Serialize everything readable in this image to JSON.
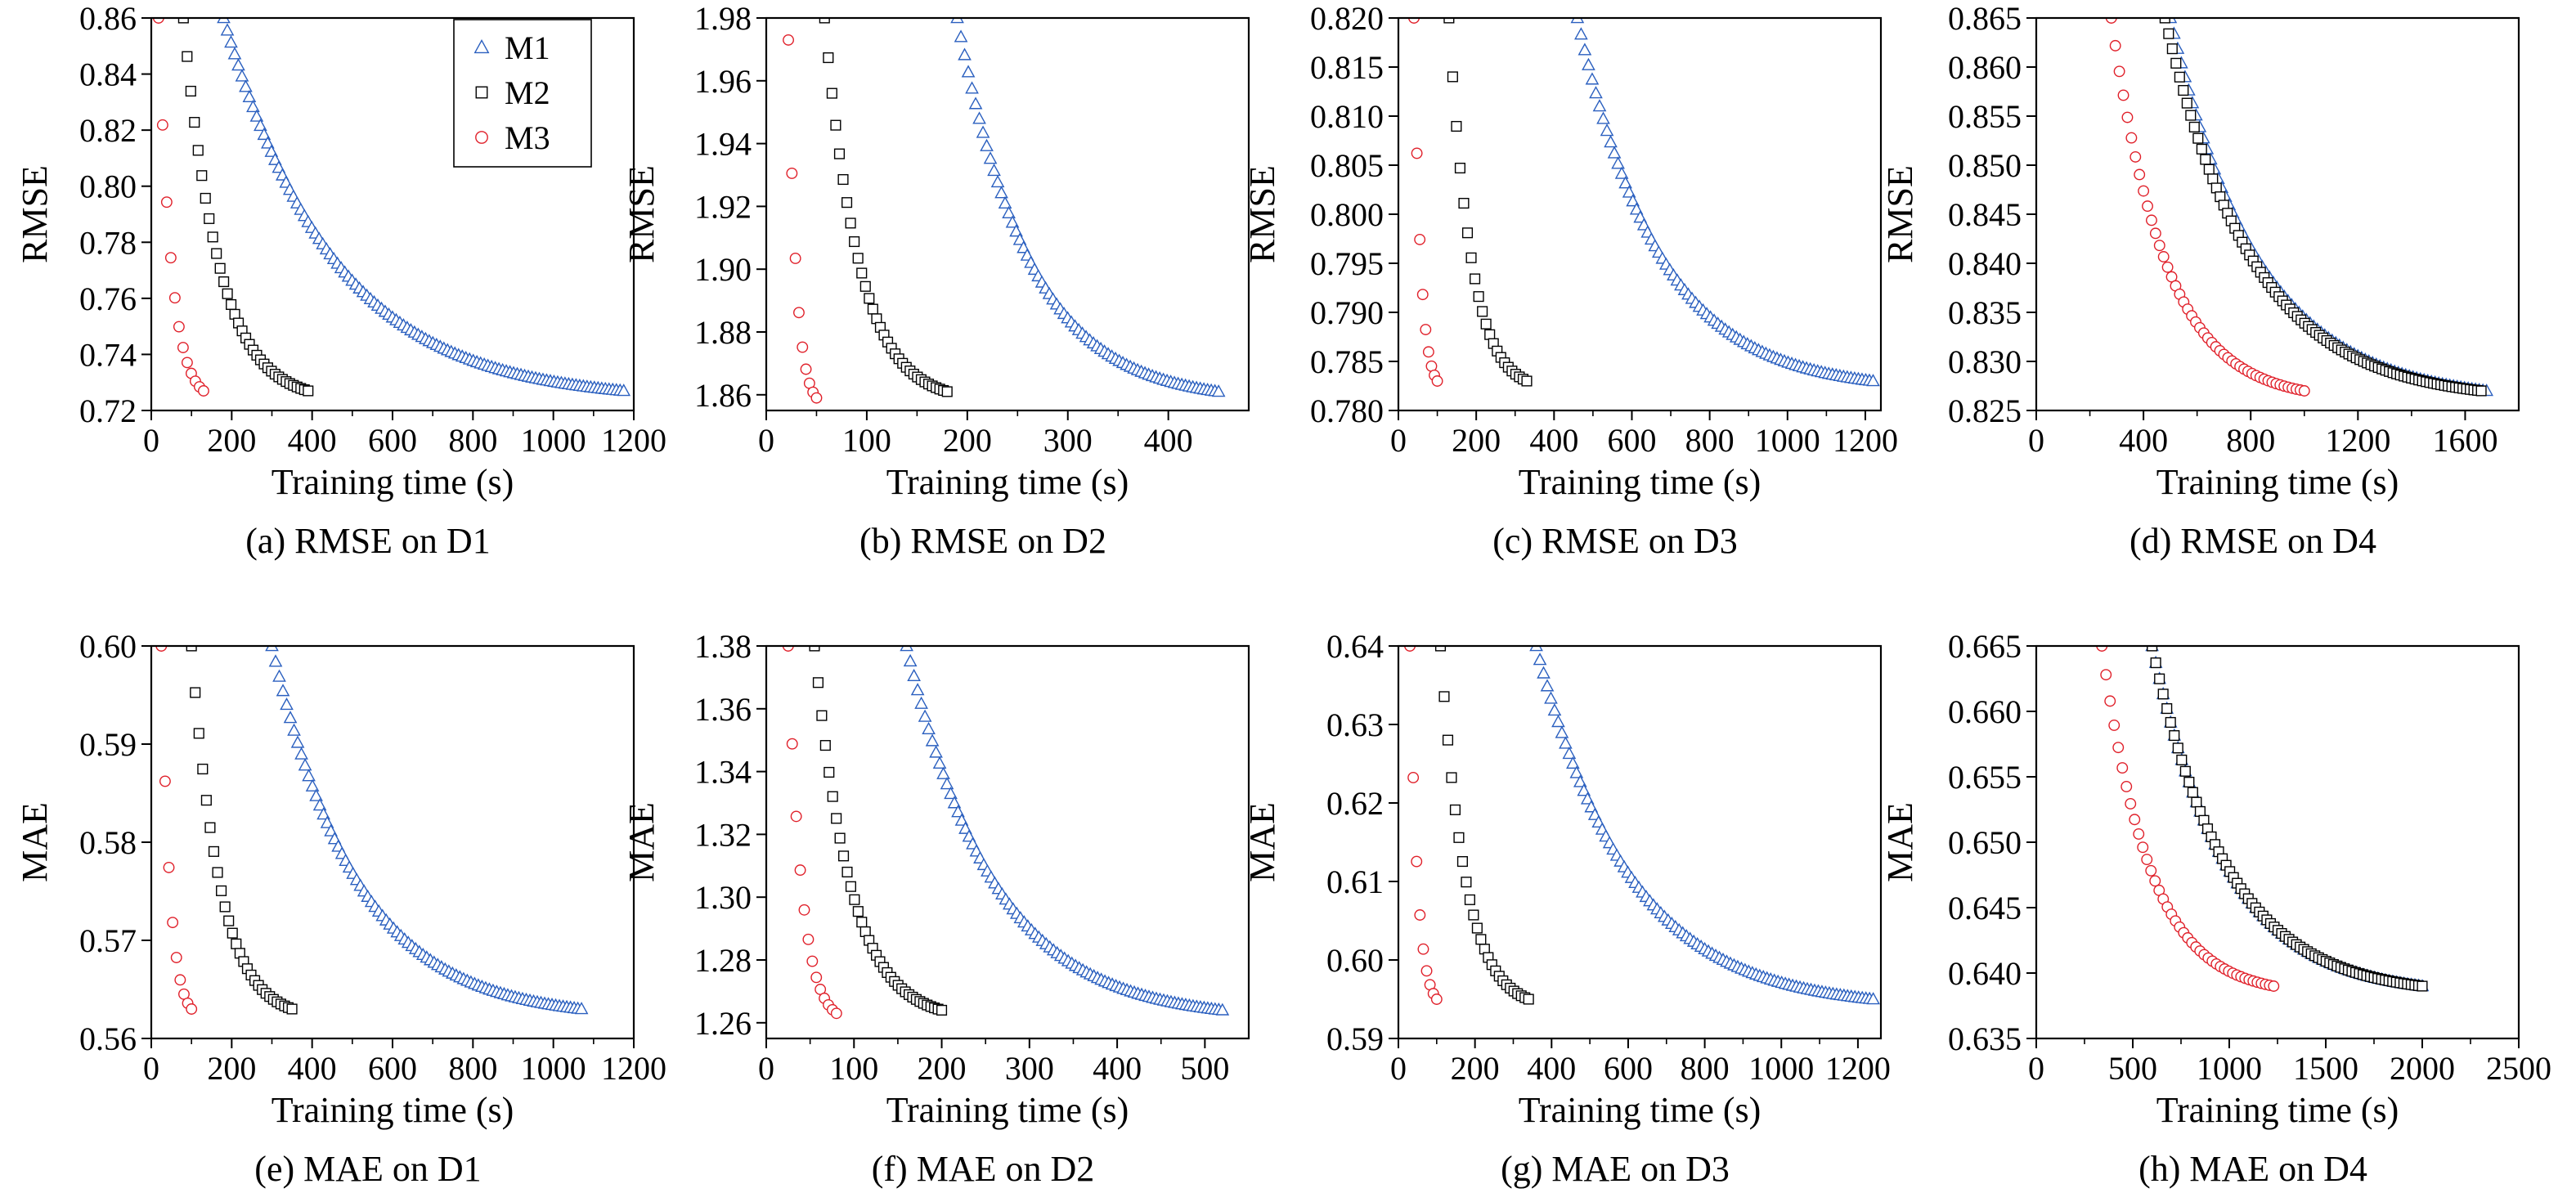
{
  "legend": [
    {
      "name": "M1",
      "color": "#2a5fbf",
      "marker": "triangle"
    },
    {
      "name": "M2",
      "color": "#000000",
      "marker": "square"
    },
    {
      "name": "M3",
      "color": "#e0202a",
      "marker": "circle"
    }
  ],
  "chart_data": [
    {
      "id": "a",
      "type": "scatter",
      "caption": "(a) RMSE on D1",
      "xlabel": "Training time (s)",
      "ylabel": "RMSE",
      "xlim": [
        0,
        1200
      ],
      "ylim": [
        0.72,
        0.86
      ],
      "xticks": [
        0,
        200,
        400,
        600,
        800,
        1000,
        1200
      ],
      "xtick_labels": [
        "0",
        "200",
        "400",
        "600",
        "800",
        "1000",
        "1200"
      ],
      "yticks": [
        0.72,
        0.74,
        0.76,
        0.78,
        0.8,
        0.82,
        0.84,
        0.86
      ],
      "ytick_labels": [
        "0.72",
        "0.74",
        "0.76",
        "0.78",
        "0.80",
        "0.82",
        "0.84",
        "0.86"
      ],
      "legend_position": "top-right",
      "series": [
        {
          "name": "M1",
          "x_start": 180,
          "x_end": 1175,
          "y_start": 0.86,
          "y_end": 0.727
        },
        {
          "name": "M2",
          "x_start": 80,
          "x_end": 390,
          "y_start": 0.86,
          "y_end": 0.727
        },
        {
          "name": "M3",
          "x_start": 18,
          "x_end": 130,
          "y_start": 0.86,
          "y_end": 0.727
        }
      ]
    },
    {
      "id": "b",
      "type": "scatter",
      "caption": "(b) RMSE on D2",
      "xlabel": "Training time (s)",
      "ylabel": "RMSE",
      "xlim": [
        0,
        480
      ],
      "ylim": [
        1.855,
        1.98
      ],
      "xticks": [
        0,
        100,
        200,
        300,
        400
      ],
      "xtick_labels": [
        "0",
        "100",
        "200",
        "300",
        "400"
      ],
      "yticks": [
        1.86,
        1.88,
        1.9,
        1.92,
        1.94,
        1.96,
        1.98
      ],
      "ytick_labels": [
        "1.86",
        "1.88",
        "1.90",
        "1.92",
        "1.94",
        "1.96",
        "1.98"
      ],
      "series": [
        {
          "name": "M1",
          "x_start": 190,
          "x_end": 450,
          "y_start": 1.98,
          "y_end": 1.861
        },
        {
          "name": "M2",
          "x_start": 58,
          "x_end": 180,
          "y_start": 1.98,
          "y_end": 1.861
        },
        {
          "name": "M3",
          "x_start": 22,
          "x_end": 50,
          "y_start": 1.973,
          "y_end": 1.859
        }
      ]
    },
    {
      "id": "c",
      "type": "scatter",
      "caption": "(c) RMSE on D3",
      "xlabel": "Training time (s)",
      "ylabel": "RMSE",
      "xlim": [
        0,
        1240
      ],
      "ylim": [
        0.78,
        0.82
      ],
      "xticks": [
        0,
        200,
        400,
        600,
        800,
        1000,
        1200
      ],
      "xtick_labels": [
        "0",
        "200",
        "400",
        "600",
        "800",
        "1000",
        "1200"
      ],
      "yticks": [
        0.78,
        0.785,
        0.79,
        0.795,
        0.8,
        0.805,
        0.81,
        0.815,
        0.82
      ],
      "ytick_labels": [
        "0.780",
        "0.785",
        "0.790",
        "0.795",
        "0.800",
        "0.805",
        "0.810",
        "0.815",
        "0.820"
      ],
      "series": [
        {
          "name": "M1",
          "x_start": 460,
          "x_end": 1220,
          "y_start": 0.82,
          "y_end": 0.783
        },
        {
          "name": "M2",
          "x_start": 130,
          "x_end": 330,
          "y_start": 0.82,
          "y_end": 0.783
        },
        {
          "name": "M3",
          "x_start": 40,
          "x_end": 100,
          "y_start": 0.82,
          "y_end": 0.783
        }
      ]
    },
    {
      "id": "d",
      "type": "scatter",
      "caption": "(d) RMSE on D4",
      "xlabel": "Training time (s)",
      "ylabel": "RMSE",
      "xlim": [
        0,
        1800
      ],
      "ylim": [
        0.825,
        0.865
      ],
      "xticks": [
        0,
        400,
        800,
        1200,
        1600
      ],
      "xtick_labels": [
        "0",
        "400",
        "800",
        "1200",
        "1600"
      ],
      "yticks": [
        0.825,
        0.83,
        0.835,
        0.84,
        0.845,
        0.85,
        0.855,
        0.86,
        0.865
      ],
      "ytick_labels": [
        "0.825",
        "0.830",
        "0.835",
        "0.840",
        "0.845",
        "0.850",
        "0.855",
        "0.860",
        "0.865"
      ],
      "series": [
        {
          "name": "M1",
          "x_start": 500,
          "x_end": 1680,
          "y_start": 0.865,
          "y_end": 0.827
        },
        {
          "name": "M2",
          "x_start": 480,
          "x_end": 1660,
          "y_start": 0.865,
          "y_end": 0.827
        },
        {
          "name": "M3",
          "x_start": 280,
          "x_end": 1000,
          "y_start": 0.865,
          "y_end": 0.827
        }
      ]
    },
    {
      "id": "e",
      "type": "scatter",
      "caption": "(e) MAE on D1",
      "xlabel": "Training time (s)",
      "ylabel": "MAE",
      "xlim": [
        0,
        1200
      ],
      "ylim": [
        0.56,
        0.6
      ],
      "xticks": [
        0,
        200,
        400,
        600,
        800,
        1000,
        1200
      ],
      "xtick_labels": [
        "0",
        "200",
        "400",
        "600",
        "800",
        "1000",
        "1200"
      ],
      "yticks": [
        0.56,
        0.57,
        0.58,
        0.59,
        0.6
      ],
      "ytick_labels": [
        "0.56",
        "0.57",
        "0.58",
        "0.59",
        "0.60"
      ],
      "series": [
        {
          "name": "M1",
          "x_start": 300,
          "x_end": 1070,
          "y_start": 0.6,
          "y_end": 0.563
        },
        {
          "name": "M2",
          "x_start": 100,
          "x_end": 350,
          "y_start": 0.6,
          "y_end": 0.563
        },
        {
          "name": "M3",
          "x_start": 25,
          "x_end": 100,
          "y_start": 0.6,
          "y_end": 0.563
        }
      ]
    },
    {
      "id": "f",
      "type": "scatter",
      "caption": "(f) MAE on D2",
      "xlabel": "Training time (s)",
      "ylabel": "MAE",
      "xlim": [
        0,
        550
      ],
      "ylim": [
        1.255,
        1.38
      ],
      "xticks": [
        0,
        100,
        200,
        300,
        400,
        500
      ],
      "xtick_labels": [
        "0",
        "100",
        "200",
        "300",
        "400",
        "500"
      ],
      "yticks": [
        1.26,
        1.28,
        1.3,
        1.32,
        1.34,
        1.36,
        1.38
      ],
      "ytick_labels": [
        "1.26",
        "1.28",
        "1.30",
        "1.32",
        "1.34",
        "1.36",
        "1.38"
      ],
      "series": [
        {
          "name": "M1",
          "x_start": 160,
          "x_end": 520,
          "y_start": 1.38,
          "y_end": 1.264
        },
        {
          "name": "M2",
          "x_start": 55,
          "x_end": 200,
          "y_start": 1.38,
          "y_end": 1.264
        },
        {
          "name": "M3",
          "x_start": 25,
          "x_end": 80,
          "y_start": 1.38,
          "y_end": 1.263
        }
      ]
    },
    {
      "id": "g",
      "type": "scatter",
      "caption": "(g) MAE on D3",
      "xlabel": "Training time (s)",
      "ylabel": "MAE",
      "xlim": [
        0,
        1260
      ],
      "ylim": [
        0.59,
        0.64
      ],
      "xticks": [
        0,
        200,
        400,
        600,
        800,
        1000,
        1200
      ],
      "xtick_labels": [
        "0",
        "200",
        "400",
        "600",
        "800",
        "1000",
        "1200"
      ],
      "yticks": [
        0.59,
        0.6,
        0.61,
        0.62,
        0.63,
        0.64
      ],
      "ytick_labels": [
        "0.59",
        "0.60",
        "0.61",
        "0.62",
        "0.63",
        "0.64"
      ],
      "series": [
        {
          "name": "M1",
          "x_start": 360,
          "x_end": 1240,
          "y_start": 0.64,
          "y_end": 0.595
        },
        {
          "name": "M2",
          "x_start": 110,
          "x_end": 340,
          "y_start": 0.64,
          "y_end": 0.595
        },
        {
          "name": "M3",
          "x_start": 30,
          "x_end": 100,
          "y_start": 0.64,
          "y_end": 0.595
        }
      ]
    },
    {
      "id": "h",
      "type": "scatter",
      "caption": "(h) MAE on D4",
      "xlabel": "Training time (s)",
      "ylabel": "MAE",
      "xlim": [
        0,
        2500
      ],
      "ylim": [
        0.635,
        0.665
      ],
      "xticks": [
        0,
        500,
        1000,
        1500,
        2000,
        2500
      ],
      "xtick_labels": [
        "0",
        "500",
        "1000",
        "1500",
        "2000",
        "2500"
      ],
      "yticks": [
        0.635,
        0.64,
        0.645,
        0.65,
        0.655,
        0.66,
        0.665
      ],
      "ytick_labels": [
        "0.635",
        "0.640",
        "0.645",
        "0.650",
        "0.655",
        "0.660",
        "0.665"
      ],
      "series": [
        {
          "name": "M1",
          "x_start": 600,
          "x_end": 2000,
          "y_start": 0.665,
          "y_end": 0.639
        },
        {
          "name": "M2",
          "x_start": 600,
          "x_end": 2000,
          "y_start": 0.665,
          "y_end": 0.639
        },
        {
          "name": "M3",
          "x_start": 340,
          "x_end": 1230,
          "y_start": 0.665,
          "y_end": 0.639
        }
      ]
    }
  ]
}
